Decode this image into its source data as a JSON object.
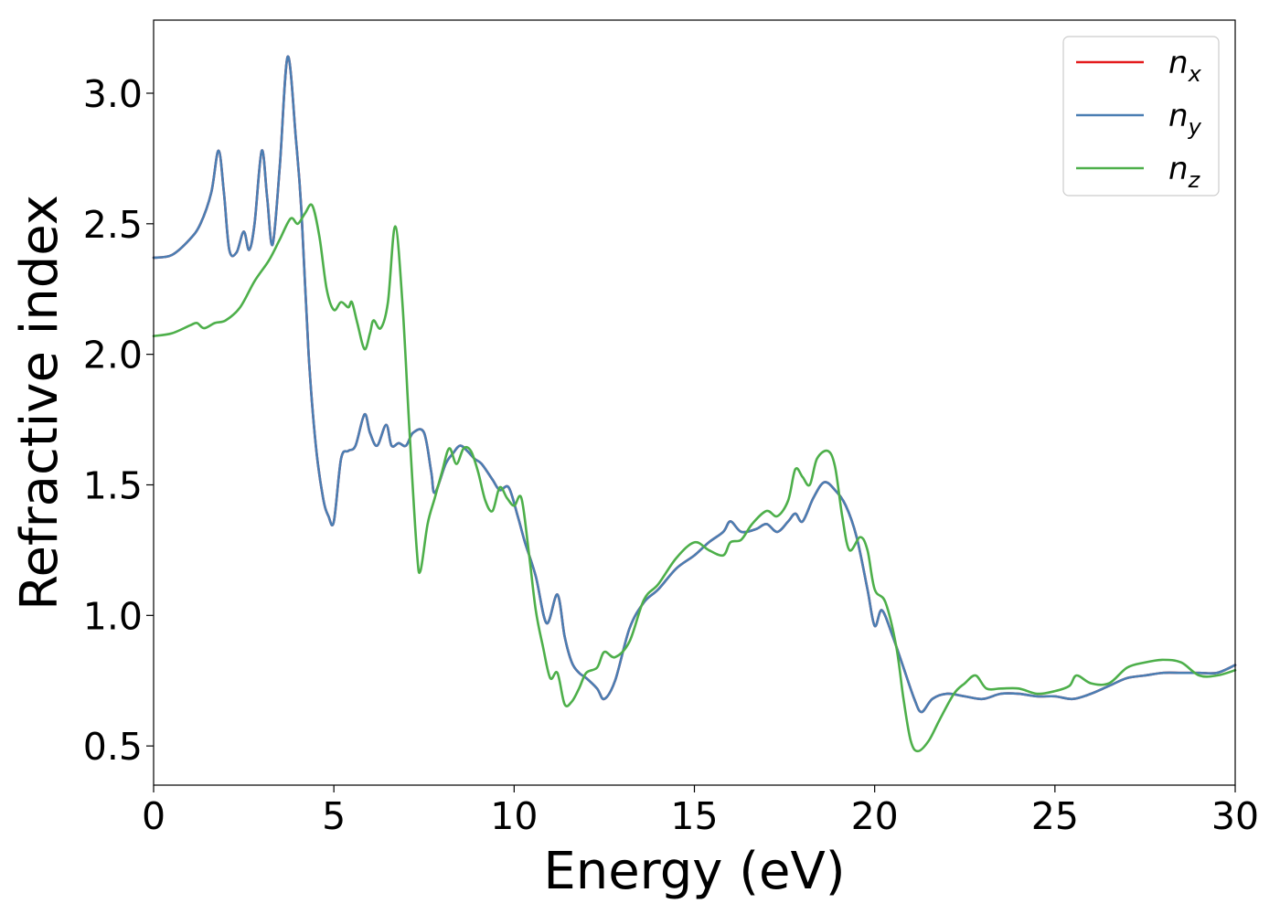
{
  "chart_data": {
    "type": "line",
    "title": "",
    "xlabel": "Energy (eV)",
    "ylabel": "Refractive index",
    "xlim": [
      0,
      30
    ],
    "ylim": [
      0.35,
      3.28
    ],
    "xticks": [
      0,
      5,
      10,
      15,
      20,
      25,
      30
    ],
    "yticks": [
      0.5,
      1.0,
      1.5,
      2.0,
      2.5,
      3.0
    ],
    "xtick_labels": [
      "0",
      "5",
      "10",
      "15",
      "20",
      "25",
      "30"
    ],
    "ytick_labels": [
      "0.5",
      "1.0",
      "1.5",
      "2.0",
      "2.5",
      "3.0"
    ],
    "grid": false,
    "legend_position": "top-right",
    "series": [
      {
        "name": "n_x",
        "base": "n",
        "sub": "x",
        "color": "#e41a1c",
        "points": [
          [
            0,
            2.37
          ],
          [
            0.5,
            2.38
          ],
          [
            1.0,
            2.44
          ],
          [
            1.3,
            2.5
          ],
          [
            1.6,
            2.62
          ],
          [
            1.8,
            2.78
          ],
          [
            1.95,
            2.62
          ],
          [
            2.1,
            2.4
          ],
          [
            2.3,
            2.39
          ],
          [
            2.5,
            2.47
          ],
          [
            2.65,
            2.4
          ],
          [
            2.8,
            2.5
          ],
          [
            3.0,
            2.78
          ],
          [
            3.15,
            2.6
          ],
          [
            3.3,
            2.42
          ],
          [
            3.5,
            2.72
          ],
          [
            3.72,
            3.14
          ],
          [
            3.95,
            2.82
          ],
          [
            4.1,
            2.55
          ],
          [
            4.3,
            2.0
          ],
          [
            4.5,
            1.65
          ],
          [
            4.7,
            1.45
          ],
          [
            4.85,
            1.38
          ],
          [
            5.0,
            1.36
          ],
          [
            5.2,
            1.6
          ],
          [
            5.4,
            1.63
          ],
          [
            5.6,
            1.65
          ],
          [
            5.85,
            1.77
          ],
          [
            6.0,
            1.7
          ],
          [
            6.2,
            1.65
          ],
          [
            6.45,
            1.73
          ],
          [
            6.6,
            1.65
          ],
          [
            6.8,
            1.66
          ],
          [
            7.0,
            1.65
          ],
          [
            7.2,
            1.7
          ],
          [
            7.5,
            1.7
          ],
          [
            7.7,
            1.55
          ],
          [
            7.8,
            1.47
          ],
          [
            8.1,
            1.58
          ],
          [
            8.3,
            1.62
          ],
          [
            8.5,
            1.65
          ],
          [
            8.7,
            1.63
          ],
          [
            8.9,
            1.6
          ],
          [
            9.1,
            1.58
          ],
          [
            9.4,
            1.52
          ],
          [
            9.6,
            1.48
          ],
          [
            9.85,
            1.49
          ],
          [
            10.1,
            1.38
          ],
          [
            10.3,
            1.28
          ],
          [
            10.6,
            1.15
          ],
          [
            10.9,
            0.97
          ],
          [
            11.2,
            1.08
          ],
          [
            11.4,
            0.92
          ],
          [
            11.6,
            0.82
          ],
          [
            11.8,
            0.78
          ],
          [
            12.0,
            0.76
          ],
          [
            12.3,
            0.72
          ],
          [
            12.5,
            0.68
          ],
          [
            12.8,
            0.75
          ],
          [
            13.2,
            0.95
          ],
          [
            13.6,
            1.05
          ],
          [
            14.0,
            1.1
          ],
          [
            14.5,
            1.18
          ],
          [
            15.0,
            1.23
          ],
          [
            15.4,
            1.28
          ],
          [
            15.8,
            1.32
          ],
          [
            16.0,
            1.36
          ],
          [
            16.3,
            1.32
          ],
          [
            16.7,
            1.33
          ],
          [
            17.0,
            1.35
          ],
          [
            17.3,
            1.32
          ],
          [
            17.6,
            1.36
          ],
          [
            17.8,
            1.39
          ],
          [
            18.0,
            1.36
          ],
          [
            18.3,
            1.45
          ],
          [
            18.6,
            1.51
          ],
          [
            18.9,
            1.48
          ],
          [
            19.2,
            1.42
          ],
          [
            19.5,
            1.3
          ],
          [
            19.8,
            1.1
          ],
          [
            20.0,
            0.96
          ],
          [
            20.2,
            1.02
          ],
          [
            20.5,
            0.92
          ],
          [
            20.8,
            0.8
          ],
          [
            21.1,
            0.68
          ],
          [
            21.3,
            0.63
          ],
          [
            21.6,
            0.68
          ],
          [
            22.0,
            0.7
          ],
          [
            22.5,
            0.69
          ],
          [
            23.0,
            0.68
          ],
          [
            23.5,
            0.7
          ],
          [
            24.0,
            0.7
          ],
          [
            24.5,
            0.69
          ],
          [
            25.0,
            0.69
          ],
          [
            25.5,
            0.68
          ],
          [
            26.0,
            0.7
          ],
          [
            26.5,
            0.73
          ],
          [
            27.0,
            0.76
          ],
          [
            27.5,
            0.77
          ],
          [
            28.0,
            0.78
          ],
          [
            28.5,
            0.78
          ],
          [
            29.0,
            0.78
          ],
          [
            29.5,
            0.78
          ],
          [
            30.0,
            0.81
          ]
        ]
      },
      {
        "name": "n_y",
        "base": "n",
        "sub": "y",
        "color": "#4a7eb3",
        "points": [
          [
            0,
            2.37
          ],
          [
            0.5,
            2.38
          ],
          [
            1.0,
            2.44
          ],
          [
            1.3,
            2.5
          ],
          [
            1.6,
            2.62
          ],
          [
            1.8,
            2.78
          ],
          [
            1.95,
            2.62
          ],
          [
            2.1,
            2.4
          ],
          [
            2.3,
            2.39
          ],
          [
            2.5,
            2.47
          ],
          [
            2.65,
            2.4
          ],
          [
            2.8,
            2.5
          ],
          [
            3.0,
            2.78
          ],
          [
            3.15,
            2.6
          ],
          [
            3.3,
            2.42
          ],
          [
            3.5,
            2.72
          ],
          [
            3.72,
            3.14
          ],
          [
            3.95,
            2.82
          ],
          [
            4.1,
            2.55
          ],
          [
            4.3,
            2.0
          ],
          [
            4.5,
            1.65
          ],
          [
            4.7,
            1.45
          ],
          [
            4.85,
            1.38
          ],
          [
            5.0,
            1.36
          ],
          [
            5.2,
            1.6
          ],
          [
            5.4,
            1.63
          ],
          [
            5.6,
            1.65
          ],
          [
            5.85,
            1.77
          ],
          [
            6.0,
            1.7
          ],
          [
            6.2,
            1.65
          ],
          [
            6.45,
            1.73
          ],
          [
            6.6,
            1.65
          ],
          [
            6.8,
            1.66
          ],
          [
            7.0,
            1.65
          ],
          [
            7.2,
            1.7
          ],
          [
            7.5,
            1.7
          ],
          [
            7.7,
            1.55
          ],
          [
            7.8,
            1.47
          ],
          [
            8.1,
            1.58
          ],
          [
            8.3,
            1.62
          ],
          [
            8.5,
            1.65
          ],
          [
            8.7,
            1.63
          ],
          [
            8.9,
            1.6
          ],
          [
            9.1,
            1.58
          ],
          [
            9.4,
            1.52
          ],
          [
            9.6,
            1.48
          ],
          [
            9.85,
            1.49
          ],
          [
            10.1,
            1.38
          ],
          [
            10.3,
            1.28
          ],
          [
            10.6,
            1.15
          ],
          [
            10.9,
            0.97
          ],
          [
            11.2,
            1.08
          ],
          [
            11.4,
            0.92
          ],
          [
            11.6,
            0.82
          ],
          [
            11.8,
            0.78
          ],
          [
            12.0,
            0.76
          ],
          [
            12.3,
            0.72
          ],
          [
            12.5,
            0.68
          ],
          [
            12.8,
            0.75
          ],
          [
            13.2,
            0.95
          ],
          [
            13.6,
            1.05
          ],
          [
            14.0,
            1.1
          ],
          [
            14.5,
            1.18
          ],
          [
            15.0,
            1.23
          ],
          [
            15.4,
            1.28
          ],
          [
            15.8,
            1.32
          ],
          [
            16.0,
            1.36
          ],
          [
            16.3,
            1.32
          ],
          [
            16.7,
            1.33
          ],
          [
            17.0,
            1.35
          ],
          [
            17.3,
            1.32
          ],
          [
            17.6,
            1.36
          ],
          [
            17.8,
            1.39
          ],
          [
            18.0,
            1.36
          ],
          [
            18.3,
            1.45
          ],
          [
            18.6,
            1.51
          ],
          [
            18.9,
            1.48
          ],
          [
            19.2,
            1.42
          ],
          [
            19.5,
            1.3
          ],
          [
            19.8,
            1.1
          ],
          [
            20.0,
            0.96
          ],
          [
            20.2,
            1.02
          ],
          [
            20.5,
            0.92
          ],
          [
            20.8,
            0.8
          ],
          [
            21.1,
            0.68
          ],
          [
            21.3,
            0.63
          ],
          [
            21.6,
            0.68
          ],
          [
            22.0,
            0.7
          ],
          [
            22.5,
            0.69
          ],
          [
            23.0,
            0.68
          ],
          [
            23.5,
            0.7
          ],
          [
            24.0,
            0.7
          ],
          [
            24.5,
            0.69
          ],
          [
            25.0,
            0.69
          ],
          [
            25.5,
            0.68
          ],
          [
            26.0,
            0.7
          ],
          [
            26.5,
            0.73
          ],
          [
            27.0,
            0.76
          ],
          [
            27.5,
            0.77
          ],
          [
            28.0,
            0.78
          ],
          [
            28.5,
            0.78
          ],
          [
            29.0,
            0.78
          ],
          [
            29.5,
            0.78
          ],
          [
            30.0,
            0.81
          ]
        ]
      },
      {
        "name": "n_z",
        "base": "n",
        "sub": "z",
        "color": "#4daf4a",
        "points": [
          [
            0,
            2.07
          ],
          [
            0.5,
            2.08
          ],
          [
            1.0,
            2.11
          ],
          [
            1.2,
            2.12
          ],
          [
            1.4,
            2.1
          ],
          [
            1.7,
            2.12
          ],
          [
            2.0,
            2.13
          ],
          [
            2.4,
            2.18
          ],
          [
            2.8,
            2.28
          ],
          [
            3.2,
            2.36
          ],
          [
            3.5,
            2.44
          ],
          [
            3.8,
            2.52
          ],
          [
            4.0,
            2.5
          ],
          [
            4.2,
            2.54
          ],
          [
            4.4,
            2.57
          ],
          [
            4.6,
            2.45
          ],
          [
            4.8,
            2.25
          ],
          [
            5.0,
            2.17
          ],
          [
            5.2,
            2.2
          ],
          [
            5.4,
            2.18
          ],
          [
            5.5,
            2.2
          ],
          [
            5.65,
            2.12
          ],
          [
            5.85,
            2.02
          ],
          [
            6.0,
            2.08
          ],
          [
            6.1,
            2.13
          ],
          [
            6.3,
            2.1
          ],
          [
            6.5,
            2.2
          ],
          [
            6.7,
            2.49
          ],
          [
            6.9,
            2.2
          ],
          [
            7.1,
            1.7
          ],
          [
            7.3,
            1.25
          ],
          [
            7.4,
            1.17
          ],
          [
            7.6,
            1.35
          ],
          [
            7.8,
            1.45
          ],
          [
            8.0,
            1.55
          ],
          [
            8.2,
            1.64
          ],
          [
            8.4,
            1.58
          ],
          [
            8.6,
            1.64
          ],
          [
            8.8,
            1.63
          ],
          [
            9.0,
            1.55
          ],
          [
            9.2,
            1.44
          ],
          [
            9.4,
            1.4
          ],
          [
            9.6,
            1.49
          ],
          [
            9.8,
            1.45
          ],
          [
            10.0,
            1.42
          ],
          [
            10.2,
            1.45
          ],
          [
            10.4,
            1.25
          ],
          [
            10.6,
            1.02
          ],
          [
            10.8,
            0.88
          ],
          [
            11.0,
            0.76
          ],
          [
            11.2,
            0.78
          ],
          [
            11.4,
            0.66
          ],
          [
            11.6,
            0.67
          ],
          [
            11.8,
            0.72
          ],
          [
            12.0,
            0.78
          ],
          [
            12.3,
            0.8
          ],
          [
            12.5,
            0.86
          ],
          [
            12.8,
            0.84
          ],
          [
            13.2,
            0.9
          ],
          [
            13.6,
            1.06
          ],
          [
            14.0,
            1.12
          ],
          [
            14.5,
            1.22
          ],
          [
            15.0,
            1.28
          ],
          [
            15.4,
            1.25
          ],
          [
            15.8,
            1.23
          ],
          [
            16.0,
            1.28
          ],
          [
            16.3,
            1.29
          ],
          [
            16.6,
            1.35
          ],
          [
            17.0,
            1.4
          ],
          [
            17.3,
            1.38
          ],
          [
            17.6,
            1.44
          ],
          [
            17.8,
            1.56
          ],
          [
            18.0,
            1.53
          ],
          [
            18.2,
            1.5
          ],
          [
            18.4,
            1.6
          ],
          [
            18.7,
            1.63
          ],
          [
            18.9,
            1.57
          ],
          [
            19.1,
            1.38
          ],
          [
            19.3,
            1.25
          ],
          [
            19.6,
            1.3
          ],
          [
            19.8,
            1.25
          ],
          [
            20.0,
            1.1
          ],
          [
            20.3,
            1.05
          ],
          [
            20.6,
            0.88
          ],
          [
            20.8,
            0.68
          ],
          [
            21.0,
            0.52
          ],
          [
            21.2,
            0.48
          ],
          [
            21.5,
            0.52
          ],
          [
            21.8,
            0.6
          ],
          [
            22.2,
            0.7
          ],
          [
            22.5,
            0.74
          ],
          [
            22.8,
            0.77
          ],
          [
            23.1,
            0.72
          ],
          [
            23.5,
            0.72
          ],
          [
            24.0,
            0.72
          ],
          [
            24.5,
            0.7
          ],
          [
            25.0,
            0.71
          ],
          [
            25.4,
            0.73
          ],
          [
            25.6,
            0.77
          ],
          [
            26.0,
            0.74
          ],
          [
            26.5,
            0.74
          ],
          [
            27.0,
            0.8
          ],
          [
            27.5,
            0.82
          ],
          [
            28.0,
            0.83
          ],
          [
            28.5,
            0.82
          ],
          [
            29.0,
            0.77
          ],
          [
            29.5,
            0.77
          ],
          [
            30.0,
            0.79
          ]
        ]
      }
    ]
  }
}
